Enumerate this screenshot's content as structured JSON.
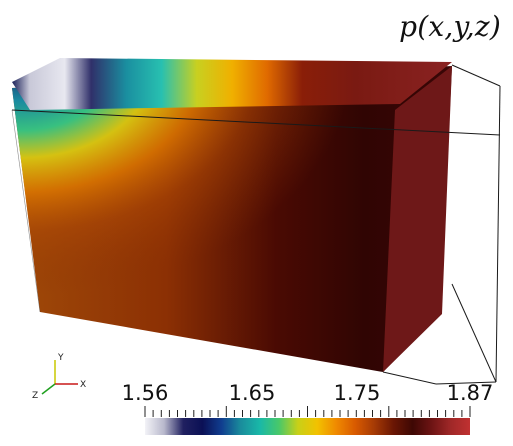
{
  "title": "p(x,y,z)",
  "colorbar": {
    "labels": [
      "1.56",
      "1.65",
      "1.75",
      "1.87"
    ],
    "range": [
      1.56,
      1.87
    ],
    "colors": [
      "#f3f3f7",
      "#b8b8cc",
      "#202060",
      "#0b1055",
      "#103d8f",
      "#1a8c9c",
      "#19b8a8",
      "#48c86a",
      "#c8d018",
      "#f2c200",
      "#f08a00",
      "#d85a00",
      "#a53a05",
      "#6a1604",
      "#3e0804",
      "#6e1414",
      "#a02828",
      "#c03131"
    ]
  },
  "axes_triad": {
    "x": "X",
    "y": "Y",
    "z": "Z"
  },
  "colors": {
    "outline": "#1a1a1a",
    "background": "#ffffff"
  }
}
